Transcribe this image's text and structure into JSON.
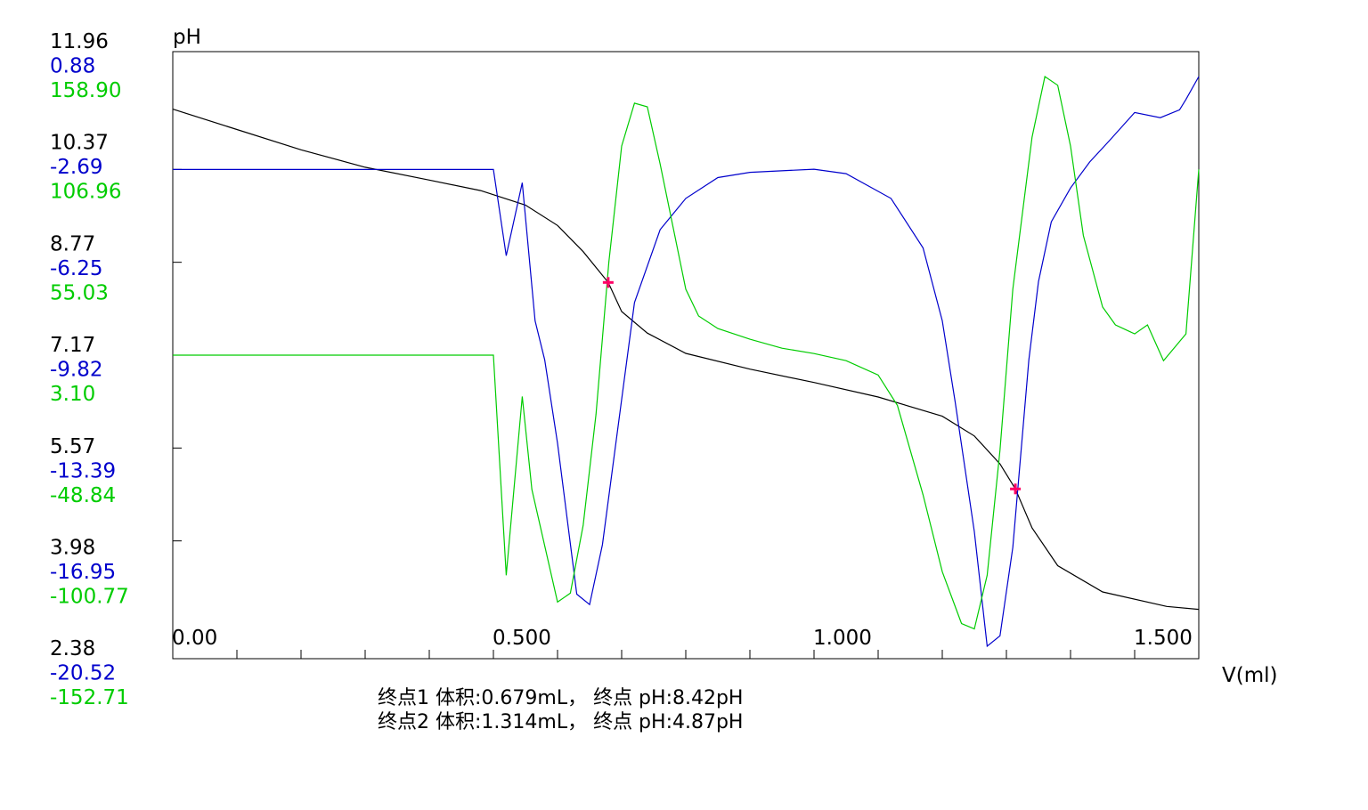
{
  "chart_data": {
    "type": "line",
    "y_label": "pH",
    "x_label": "V(ml)",
    "xlim": [
      0,
      1.6
    ],
    "x_ticks": [
      "0.00",
      "0.500",
      "1.000",
      "1.500"
    ],
    "x_tick_values": [
      0,
      0.5,
      1.0,
      1.5
    ],
    "y_scales": {
      "ph": {
        "color": "#000000",
        "range": [
          2.38,
          11.96
        ],
        "ticks": [
          "11.96",
          "10.37",
          "8.77",
          "7.17",
          "5.57",
          "3.98",
          "2.38"
        ]
      },
      "blue": {
        "color": "#0000cc",
        "range": [
          -20.52,
          0.88
        ],
        "ticks": [
          "0.88",
          "-2.69",
          "-6.25",
          "-9.82",
          "-13.39",
          "-16.95",
          "-20.52"
        ]
      },
      "green": {
        "color": "#00cc00",
        "range": [
          -152.71,
          158.9
        ],
        "ticks": [
          "158.90",
          "106.96",
          "55.03",
          "3.10",
          "-48.84",
          "-100.77",
          "-152.71"
        ]
      }
    },
    "series": [
      {
        "key": "ph",
        "color": "#000000",
        "points": [
          [
            0,
            11.4
          ],
          [
            0.1,
            11.05
          ],
          [
            0.2,
            10.7
          ],
          [
            0.3,
            10.4
          ],
          [
            0.4,
            10.18
          ],
          [
            0.48,
            10.0
          ],
          [
            0.55,
            9.75
          ],
          [
            0.6,
            9.4
          ],
          [
            0.64,
            8.95
          ],
          [
            0.679,
            8.42
          ],
          [
            0.7,
            7.92
          ],
          [
            0.74,
            7.55
          ],
          [
            0.8,
            7.2
          ],
          [
            0.9,
            6.93
          ],
          [
            1.0,
            6.7
          ],
          [
            1.1,
            6.45
          ],
          [
            1.2,
            6.12
          ],
          [
            1.25,
            5.78
          ],
          [
            1.29,
            5.3
          ],
          [
            1.314,
            4.87
          ],
          [
            1.34,
            4.2
          ],
          [
            1.38,
            3.55
          ],
          [
            1.45,
            3.1
          ],
          [
            1.55,
            2.85
          ],
          [
            1.6,
            2.8
          ]
        ]
      },
      {
        "key": "blue",
        "color": "#0000cc",
        "points": [
          [
            0,
            -2.69
          ],
          [
            0.1,
            -2.69
          ],
          [
            0.2,
            -2.69
          ],
          [
            0.3,
            -2.69
          ],
          [
            0.4,
            -2.69
          ],
          [
            0.5,
            -2.69
          ],
          [
            0.52,
            -6.0
          ],
          [
            0.545,
            -3.2
          ],
          [
            0.565,
            -8.5
          ],
          [
            0.58,
            -10.0
          ],
          [
            0.6,
            -13.2
          ],
          [
            0.63,
            -19.0
          ],
          [
            0.65,
            -19.4
          ],
          [
            0.67,
            -17.1
          ],
          [
            0.72,
            -7.8
          ],
          [
            0.76,
            -5.0
          ],
          [
            0.8,
            -3.8
          ],
          [
            0.85,
            -3.0
          ],
          [
            0.9,
            -2.8
          ],
          [
            1.0,
            -2.68
          ],
          [
            1.05,
            -2.85
          ],
          [
            1.12,
            -3.8
          ],
          [
            1.17,
            -5.7
          ],
          [
            1.2,
            -8.5
          ],
          [
            1.22,
            -11.6
          ],
          [
            1.25,
            -16.6
          ],
          [
            1.27,
            -21.0
          ],
          [
            1.29,
            -20.6
          ],
          [
            1.31,
            -17.2
          ],
          [
            1.335,
            -10.0
          ],
          [
            1.35,
            -7.0
          ],
          [
            1.37,
            -4.7
          ],
          [
            1.4,
            -3.4
          ],
          [
            1.43,
            -2.4
          ],
          [
            1.46,
            -1.6
          ],
          [
            1.5,
            -0.5
          ],
          [
            1.54,
            -0.7
          ],
          [
            1.57,
            -0.4
          ],
          [
            1.58,
            0.0
          ],
          [
            1.6,
            0.88
          ]
        ]
      },
      {
        "key": "green",
        "color": "#00cc00",
        "points": [
          [
            0,
            3.1
          ],
          [
            0.1,
            3.1
          ],
          [
            0.2,
            3.1
          ],
          [
            0.3,
            3.1
          ],
          [
            0.4,
            3.1
          ],
          [
            0.5,
            3.1
          ],
          [
            0.52,
            -120.0
          ],
          [
            0.545,
            -20.0
          ],
          [
            0.56,
            -72.0
          ],
          [
            0.6,
            -135.0
          ],
          [
            0.62,
            -130.0
          ],
          [
            0.64,
            -92.0
          ],
          [
            0.66,
            -30.0
          ],
          [
            0.68,
            55.0
          ],
          [
            0.7,
            120.0
          ],
          [
            0.72,
            144.0
          ],
          [
            0.74,
            142.0
          ],
          [
            0.76,
            110.0
          ],
          [
            0.8,
            40.0
          ],
          [
            0.82,
            25.0
          ],
          [
            0.85,
            18.0
          ],
          [
            0.9,
            12.0
          ],
          [
            0.95,
            7.0
          ],
          [
            1.0,
            4.0
          ],
          [
            1.05,
            0.0
          ],
          [
            1.1,
            -8.0
          ],
          [
            1.13,
            -25.0
          ],
          [
            1.17,
            -75.0
          ],
          [
            1.2,
            -118.0
          ],
          [
            1.23,
            -147.0
          ],
          [
            1.25,
            -150.0
          ],
          [
            1.27,
            -120.0
          ],
          [
            1.29,
            -50.0
          ],
          [
            1.31,
            40.0
          ],
          [
            1.34,
            125.0
          ],
          [
            1.36,
            158.9
          ],
          [
            1.38,
            154.0
          ],
          [
            1.4,
            120.0
          ],
          [
            1.42,
            70.0
          ],
          [
            1.45,
            30.0
          ],
          [
            1.47,
            20.0
          ],
          [
            1.5,
            15.0
          ],
          [
            1.52,
            20.0
          ],
          [
            1.545,
            0.0
          ],
          [
            1.58,
            15.0
          ],
          [
            1.6,
            106.96
          ]
        ]
      }
    ],
    "endpoints": [
      {
        "x": 0.679,
        "y": 8.42
      },
      {
        "x": 1.314,
        "y": 4.87
      }
    ]
  },
  "bottom_text": {
    "line1": "终点1 体积:0.679mL， 终点 pH:8.42pH",
    "line2": "终点2 体积:1.314mL， 终点 pH:4.87pH"
  }
}
